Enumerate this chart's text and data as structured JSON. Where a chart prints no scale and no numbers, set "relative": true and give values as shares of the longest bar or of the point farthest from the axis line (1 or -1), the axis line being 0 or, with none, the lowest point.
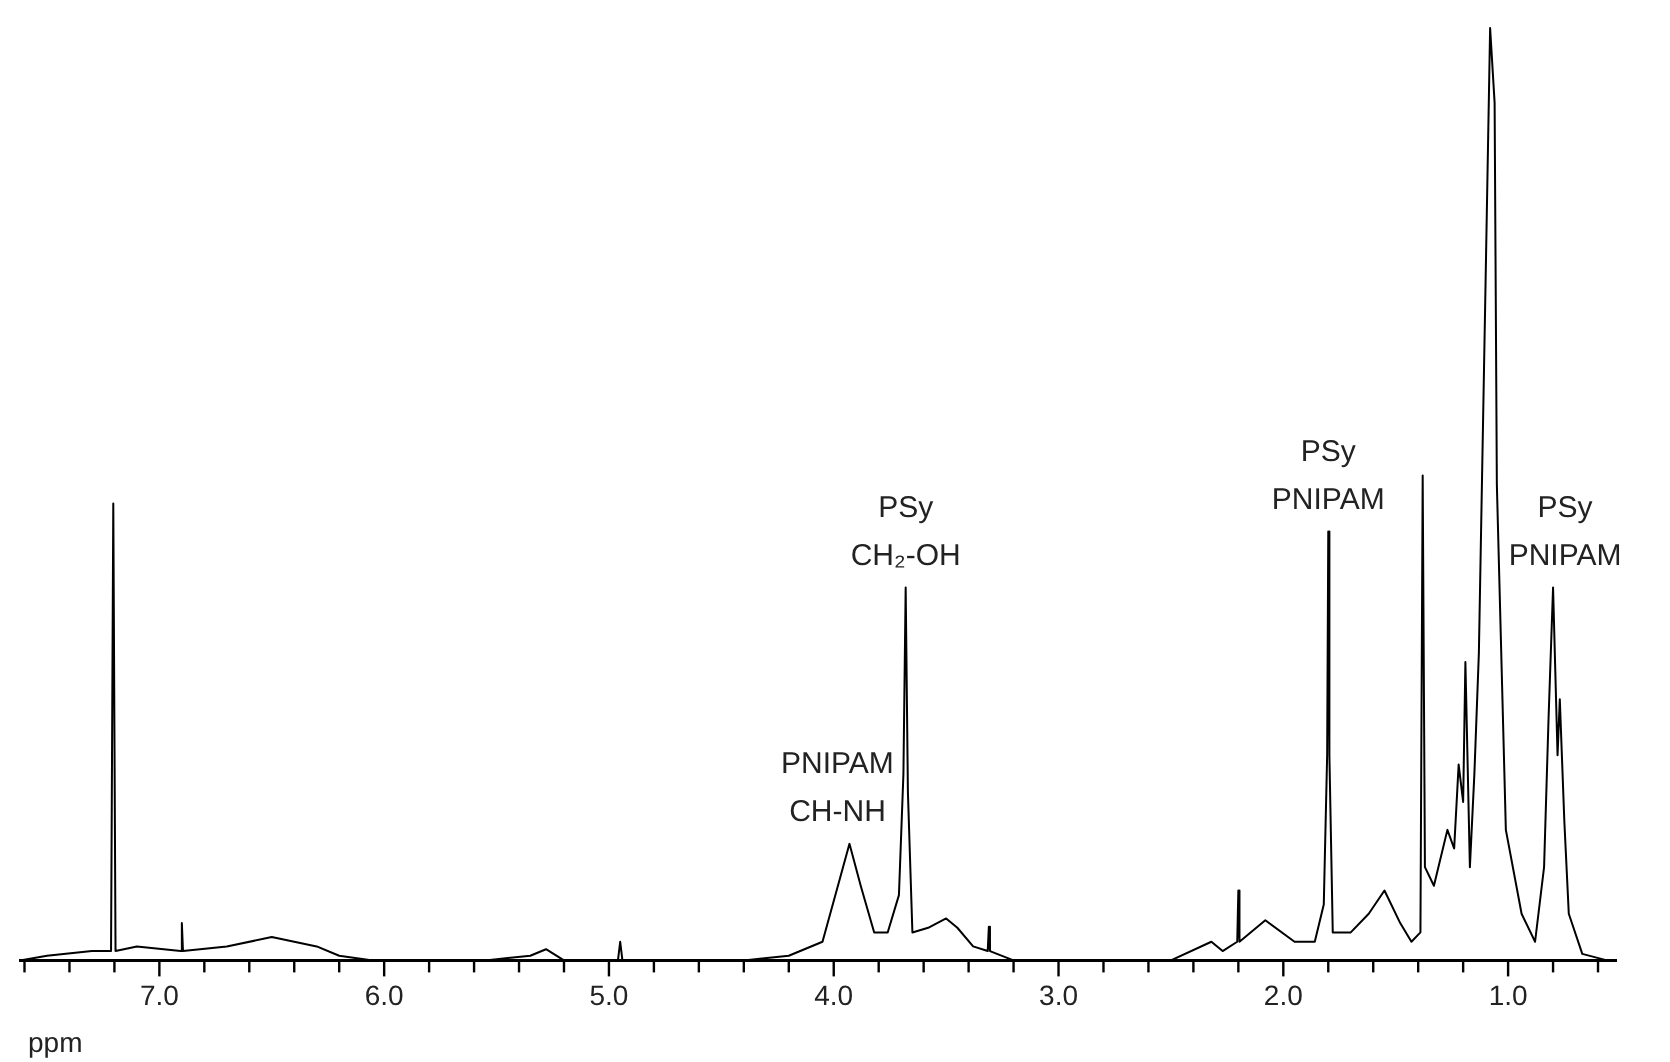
{
  "chart_data": {
    "type": "line",
    "relative": true,
    "xlabel": "ppm",
    "xlim": [
      7.62,
      0.52
    ],
    "xticks": [
      {
        "value": 7.6,
        "label": null
      },
      {
        "value": 7.4,
        "label": null
      },
      {
        "value": 7.2,
        "label": null
      },
      {
        "value": 7,
        "label": "7.0"
      },
      {
        "value": 6.8,
        "label": null
      },
      {
        "value": 6.6,
        "label": null
      },
      {
        "value": 6.4,
        "label": null
      },
      {
        "value": 6.2,
        "label": null
      },
      {
        "value": 6,
        "label": "6.0"
      },
      {
        "value": 5.8,
        "label": null
      },
      {
        "value": 5.6,
        "label": null
      },
      {
        "value": 5.4,
        "label": null
      },
      {
        "value": 5.2,
        "label": null
      },
      {
        "value": 5,
        "label": "5.0"
      },
      {
        "value": 4.8,
        "label": null
      },
      {
        "value": 4.6,
        "label": null
      },
      {
        "value": 4.4,
        "label": null
      },
      {
        "value": 4.2,
        "label": null
      },
      {
        "value": 4,
        "label": "4.0"
      },
      {
        "value": 3.8,
        "label": null
      },
      {
        "value": 3.6,
        "label": null
      },
      {
        "value": 3.4,
        "label": null
      },
      {
        "value": 3.2,
        "label": null
      },
      {
        "value": 3,
        "label": "3.0"
      },
      {
        "value": 2.8,
        "label": null
      },
      {
        "value": 2.6,
        "label": null
      },
      {
        "value": 2.4,
        "label": null
      },
      {
        "value": 2.2,
        "label": null
      },
      {
        "value": 2,
        "label": "2.0"
      },
      {
        "value": 1.8,
        "label": null
      },
      {
        "value": 1.6,
        "label": null
      },
      {
        "value": 1.4,
        "label": null
      },
      {
        "value": 1.2,
        "label": null
      },
      {
        "value": 1,
        "label": "1.0"
      },
      {
        "value": 0.8,
        "label": null
      },
      {
        "value": 0.6,
        "label": null
      }
    ],
    "marker": "none",
    "line_style": "solid",
    "x": [
      7.62,
      7.5,
      7.3,
      7.215,
      7.205,
      7.195,
      7.1,
      6.905,
      6.9,
      6.895,
      6.7,
      6.5,
      6.3,
      6.2,
      6.05,
      5.9,
      5.55,
      5.35,
      5.28,
      5.2,
      4.96,
      4.95,
      4.94,
      4.4,
      4.2,
      4.05,
      3.97,
      3.93,
      3.88,
      3.82,
      3.76,
      3.71,
      3.69,
      3.68,
      3.67,
      3.65,
      3.58,
      3.5,
      3.45,
      3.38,
      3.315,
      3.31,
      3.305,
      3.2,
      2.5,
      2.32,
      2.27,
      2.205,
      2.2,
      2.195,
      2.08,
      1.95,
      1.86,
      1.82,
      1.805,
      1.8,
      1.795,
      1.78,
      1.7,
      1.62,
      1.55,
      1.48,
      1.43,
      1.39,
      1.38,
      1.37,
      1.33,
      1.27,
      1.24,
      1.22,
      1.2,
      1.19,
      1.17,
      1.15,
      1.13,
      1.1,
      1.08,
      1.06,
      1.05,
      1.01,
      0.94,
      0.88,
      0.84,
      0.82,
      0.8,
      0.78,
      0.77,
      0.75,
      0.73,
      0.67,
      0.56
    ],
    "series": [
      {
        "color": "#000000",
        "values": [
          0,
          0.005,
          0.01,
          0.01,
          0.49,
          0.01,
          0.015,
          0.01,
          0.04,
          0.01,
          0.015,
          0.025,
          0.015,
          0.005,
          0,
          0,
          0,
          0.005,
          0.012,
          0,
          0,
          0.02,
          0,
          0,
          0.005,
          0.02,
          0.09,
          0.125,
          0.08,
          0.03,
          0.03,
          0.07,
          0.2,
          0.4,
          0.18,
          0.03,
          0.035,
          0.045,
          0.035,
          0.015,
          0.01,
          0.036,
          0.01,
          0,
          0,
          0.02,
          0.01,
          0.02,
          0.075,
          0.02,
          0.043,
          0.02,
          0.02,
          0.06,
          0.22,
          0.46,
          0.22,
          0.03,
          0.03,
          0.05,
          0.075,
          0.04,
          0.02,
          0.03,
          0.52,
          0.1,
          0.08,
          0.14,
          0.12,
          0.21,
          0.17,
          0.32,
          0.1,
          0.2,
          0.33,
          0.73,
          1,
          0.92,
          0.51,
          0.14,
          0.05,
          0.02,
          0.1,
          0.26,
          0.4,
          0.22,
          0.28,
          0.15,
          0.05,
          0.007,
          0
        ]
      }
    ],
    "annotations": [
      {
        "text": "PNIPAM\nCH-NH",
        "x": 3.93,
        "y": 0.125
      },
      {
        "text": "PSy\nCH₂-OH",
        "x": 3.68,
        "y": 0.4
      },
      {
        "text": "PSy\nPNIPAM",
        "x": 1.8,
        "y": 0.46
      },
      {
        "text": "PSy\nPNIPAM",
        "x": 0.8,
        "y": 0.4
      }
    ]
  }
}
